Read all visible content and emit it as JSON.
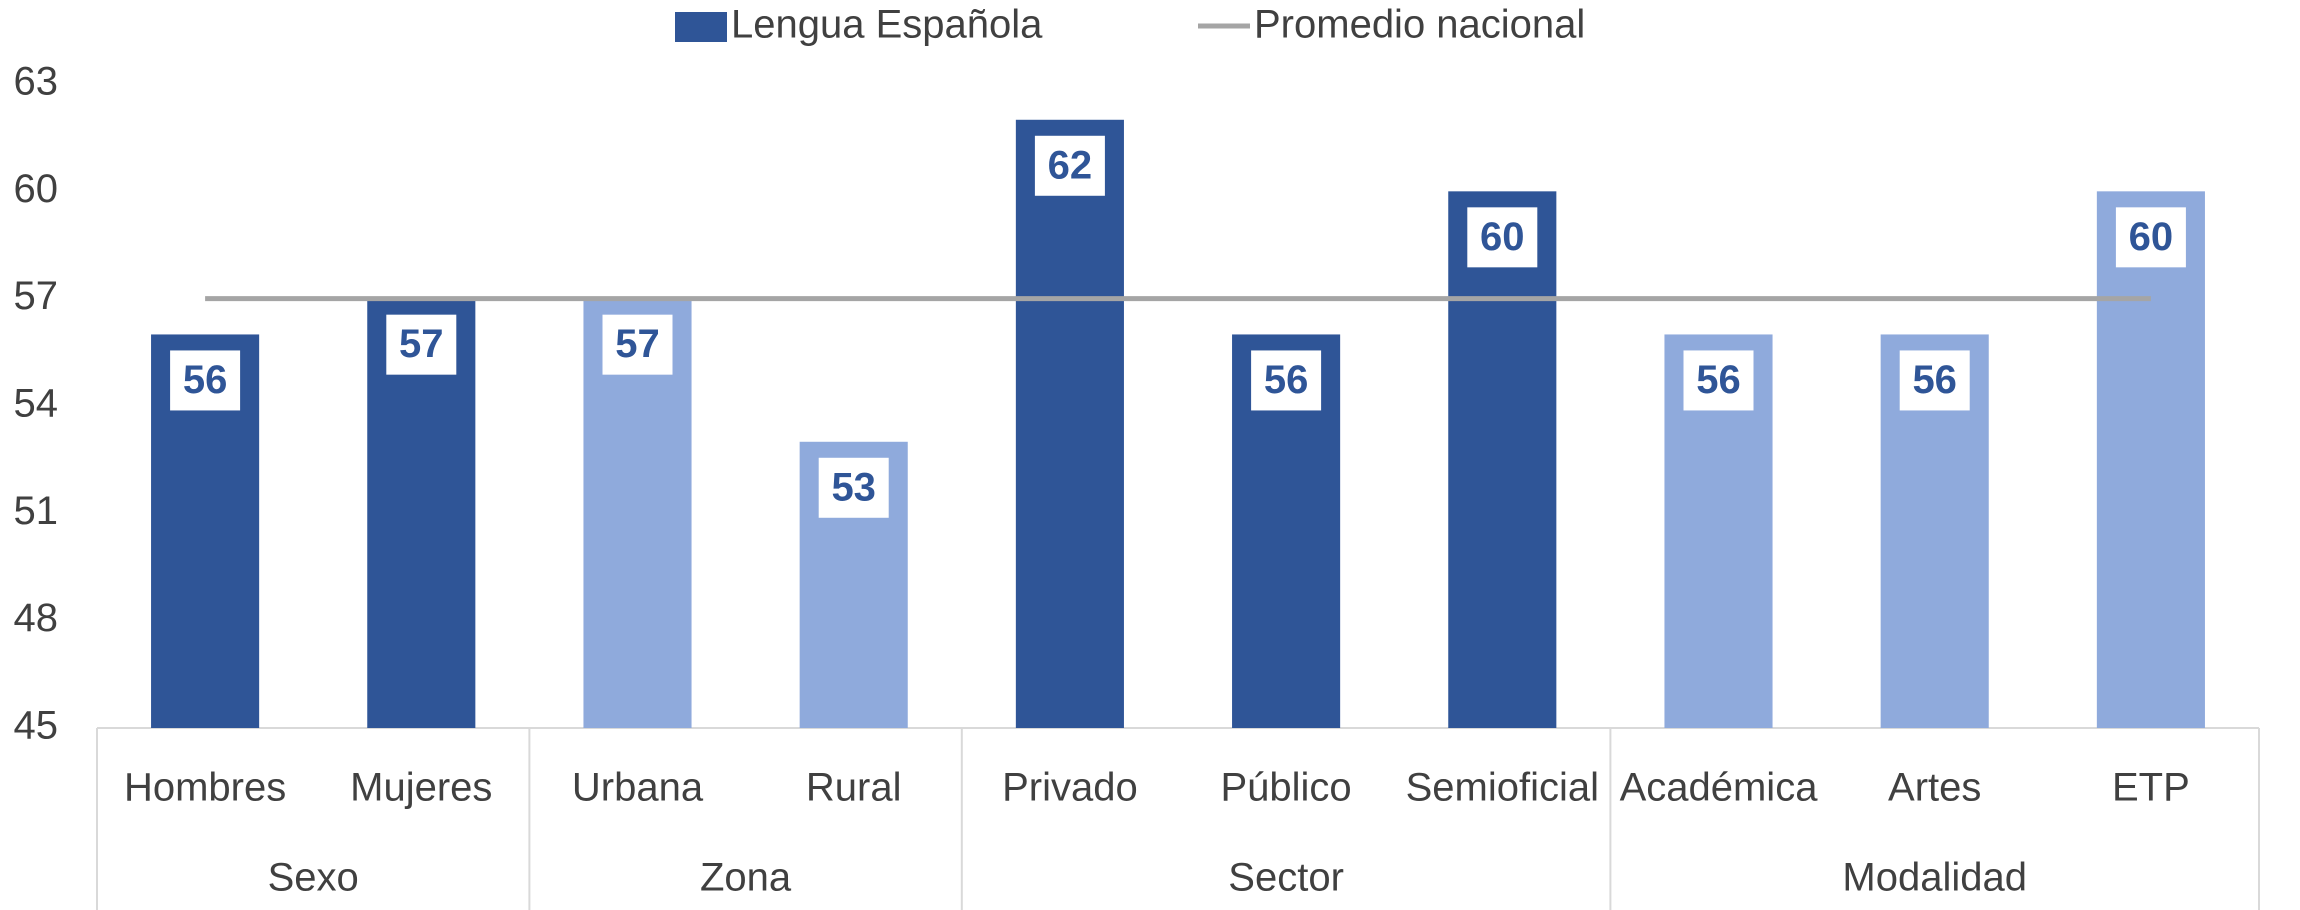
{
  "chart_data": {
    "type": "bar",
    "groups": [
      {
        "name": "Sexo",
        "categories": [
          "Hombres",
          "Mujeres"
        ]
      },
      {
        "name": "Zona",
        "categories": [
          "Urbana",
          "Rural"
        ]
      },
      {
        "name": "Sector",
        "categories": [
          "Privado",
          "Público",
          "Semioficial"
        ]
      },
      {
        "name": "Modalidad",
        "categories": [
          "Académica",
          "Artes",
          "ETP"
        ]
      }
    ],
    "series": [
      {
        "name": "Lengua Española",
        "color": "#2F5597",
        "colors": [
          "#2F5597",
          "#2F5597",
          "#8FAADC",
          "#8FAADC",
          "#2F5597",
          "#2F5597",
          "#2F5597",
          "#8FAADC",
          "#8FAADC",
          "#8FAADC"
        ],
        "values": [
          56,
          57,
          57,
          53,
          62,
          56,
          60,
          56,
          56,
          60
        ]
      },
      {
        "name": "Promedio nacional",
        "type": "line",
        "color": "#A5A5A5",
        "values": [
          57,
          57,
          57,
          57,
          57,
          57,
          57,
          57,
          57,
          57
        ]
      }
    ],
    "ylim": [
      45,
      63
    ],
    "yticks": [
      45,
      48,
      51,
      54,
      57,
      60,
      63
    ],
    "legend": "top"
  }
}
